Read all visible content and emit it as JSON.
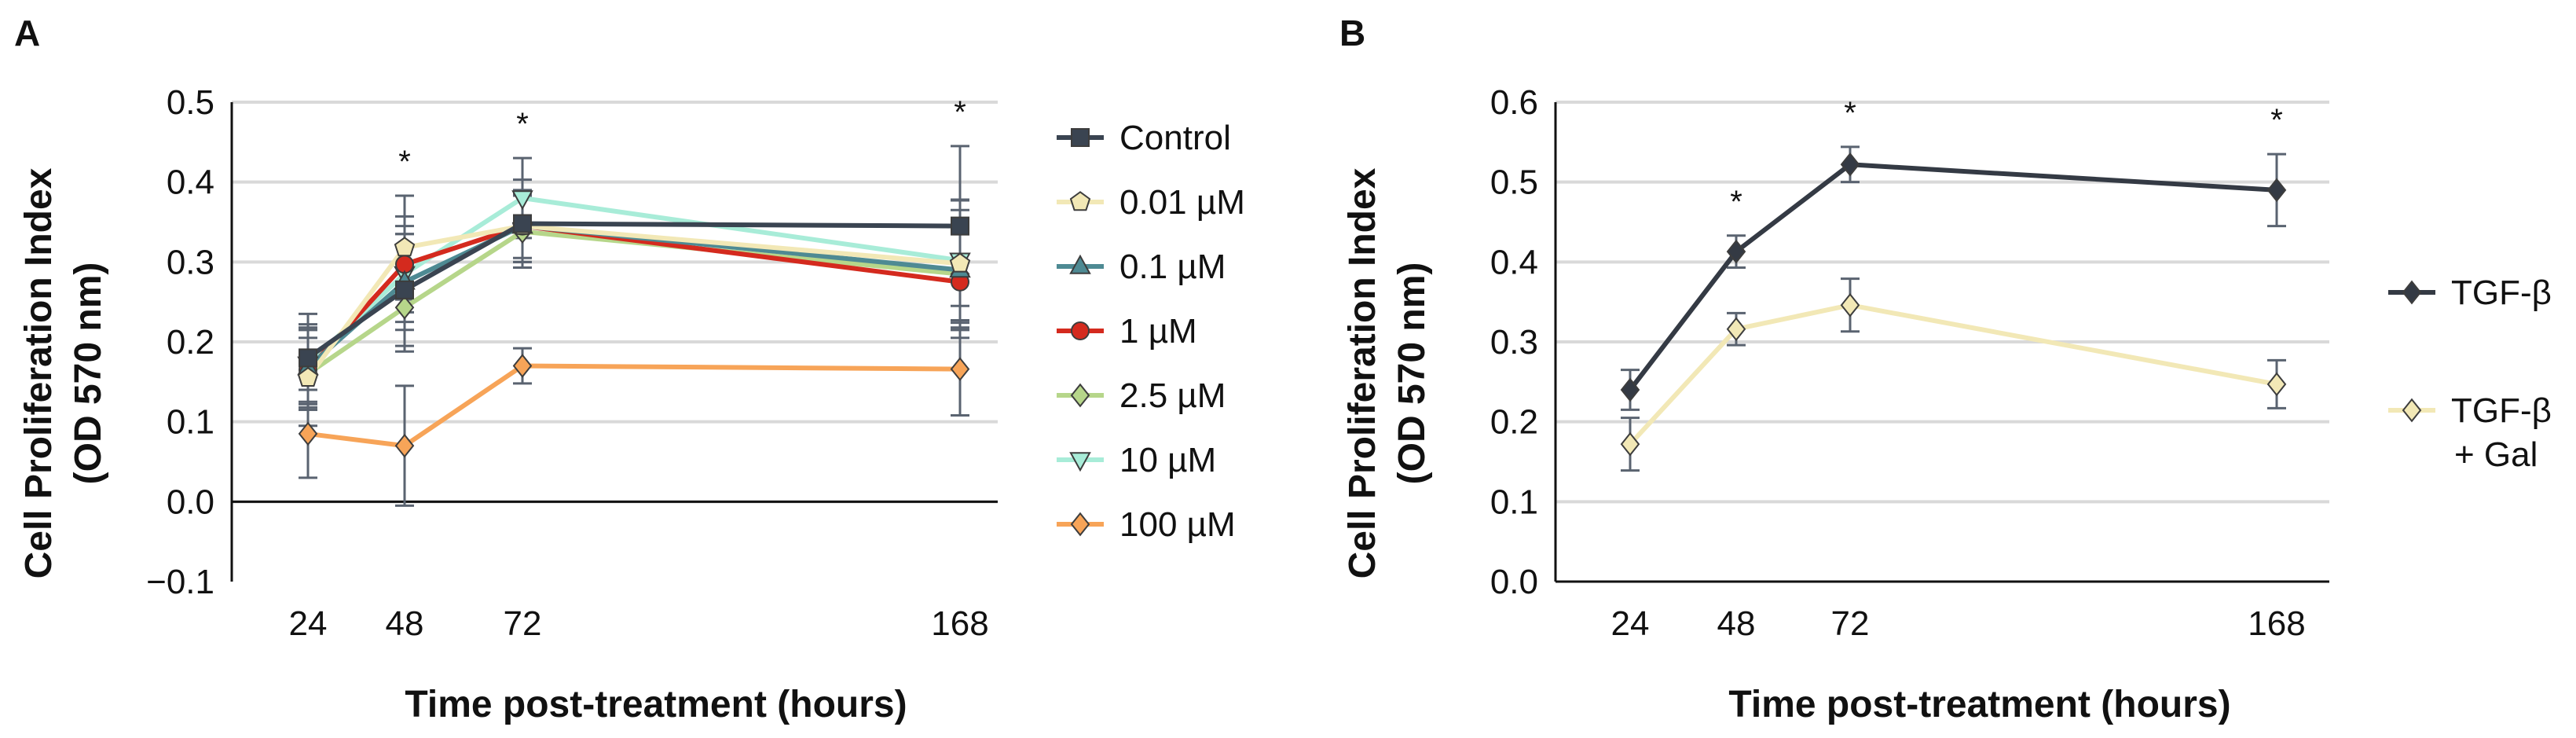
{
  "chart_data": [
    {
      "panel": "A",
      "type": "line",
      "title": "",
      "xlabel": "Time post-treatment (hours)",
      "ylabel_line1": "Cell Proliferation Index",
      "ylabel_line2": "(OD 570 nm)",
      "x": [
        24,
        48,
        72,
        168
      ],
      "x_tick_labels": [
        "24",
        "48",
        "72",
        "168"
      ],
      "ylim": [
        -0.1,
        0.5
      ],
      "y_ticks": [
        -0.1,
        0.0,
        0.1,
        0.2,
        0.3,
        0.4,
        0.5
      ],
      "y_tick_labels": [
        "−0.1",
        "0.0",
        "0.1",
        "0.2",
        "0.3",
        "0.4",
        "0.5"
      ],
      "grid": true,
      "legend_position": "right",
      "significance": [
        {
          "x": 48,
          "label": "*"
        },
        {
          "x": 72,
          "label": "*"
        },
        {
          "x": 168,
          "label": "*"
        }
      ],
      "series": [
        {
          "name": "Control",
          "values": [
            0.18,
            0.265,
            0.348,
            0.345
          ],
          "errors": [
            0.055,
            0.07,
            0.055,
            0.1
          ],
          "color": "#3a4451",
          "marker": "square"
        },
        {
          "name": "0.01 µM",
          "values": [
            0.155,
            0.318,
            0.345,
            0.298
          ],
          "errors": [
            0.06,
            0.065,
            0.04,
            0.08
          ],
          "color": "#f2e8b6",
          "marker": "pentagon"
        },
        {
          "name": "0.1 µM",
          "values": [
            0.168,
            0.275,
            0.345,
            0.29
          ],
          "errors": [
            0.05,
            0.06,
            0.045,
            0.075
          ],
          "color": "#4e8a93",
          "marker": "triangle-up"
        },
        {
          "name": "1 µM",
          "values": [
            0.165,
            0.297,
            0.345,
            0.275
          ],
          "errors": [
            0.05,
            0.06,
            0.045,
            0.07
          ],
          "color": "#d42a1e",
          "marker": "circle"
        },
        {
          "name": "2.5 µM",
          "values": [
            0.16,
            0.243,
            0.338,
            0.285
          ],
          "errors": [
            0.045,
            0.055,
            0.045,
            0.07
          ],
          "color": "#b6d68a",
          "marker": "diamond"
        },
        {
          "name": "10 µM",
          "values": [
            0.172,
            0.285,
            0.38,
            0.302
          ],
          "errors": [
            0.05,
            0.06,
            0.05,
            0.075
          ],
          "color": "#a8ecd8",
          "marker": "triangle-down"
        },
        {
          "name": "100 µM",
          "values": [
            0.085,
            0.07,
            0.17,
            0.166
          ],
          "errors": [
            0.055,
            0.075,
            0.022,
            0.058
          ],
          "color": "#f7a458",
          "marker": "diamond"
        }
      ]
    },
    {
      "panel": "B",
      "type": "line",
      "title": "",
      "xlabel": "Time post-treatment (hours)",
      "ylabel_line1": "Cell Proliferation Index",
      "ylabel_line2": "(OD 570 nm)",
      "x": [
        24,
        48,
        72,
        168
      ],
      "x_tick_labels": [
        "24",
        "48",
        "72",
        "168"
      ],
      "ylim": [
        0.0,
        0.6
      ],
      "y_ticks": [
        0.0,
        0.1,
        0.2,
        0.3,
        0.4,
        0.5,
        0.6
      ],
      "y_tick_labels": [
        "0.0",
        "0.1",
        "0.2",
        "0.3",
        "0.4",
        "0.5",
        "0.6"
      ],
      "grid": true,
      "legend_position": "right",
      "significance": [
        {
          "x": 48,
          "label": "*"
        },
        {
          "x": 72,
          "label": "*"
        },
        {
          "x": 168,
          "label": "*"
        }
      ],
      "series": [
        {
          "name": "TGF-β",
          "legend_lines": [
            "TGF-β"
          ],
          "values": [
            0.24,
            0.413,
            0.522,
            0.49
          ],
          "errors": [
            0.025,
            0.02,
            0.022,
            0.045
          ],
          "color": "#343a44",
          "marker": "diamond"
        },
        {
          "name": "TGF-β + Gal",
          "legend_lines": [
            "TGF-β",
            "+ Gal"
          ],
          "values": [
            0.172,
            0.316,
            0.346,
            0.247
          ],
          "errors": [
            0.033,
            0.02,
            0.033,
            0.03
          ],
          "color": "#f2e8b6",
          "marker": "diamond"
        }
      ]
    }
  ]
}
